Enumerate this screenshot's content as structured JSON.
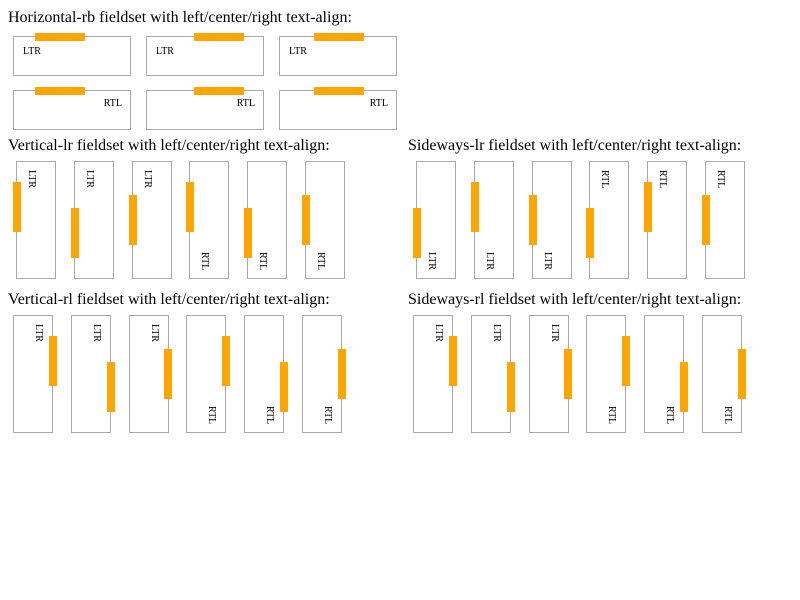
{
  "headings": {
    "horizontal": "Horizontal-rb fieldset with left/center/right text-align:",
    "vertical_lr": "Vertical-lr fieldset with left/center/right text-align:",
    "sideways_lr": "Sideways-lr fieldset with left/center/right text-align:",
    "vertical_rl": "Vertical-rl fieldset with left/center/right text-align:",
    "sideways_rl": "Sideways-rl fieldset with left/center/right text-align:"
  },
  "labels": {
    "ltr": "LTR",
    "rtl": "RTL"
  },
  "colors": {
    "legend": "#ffa500",
    "border": "#a9a9a9"
  }
}
